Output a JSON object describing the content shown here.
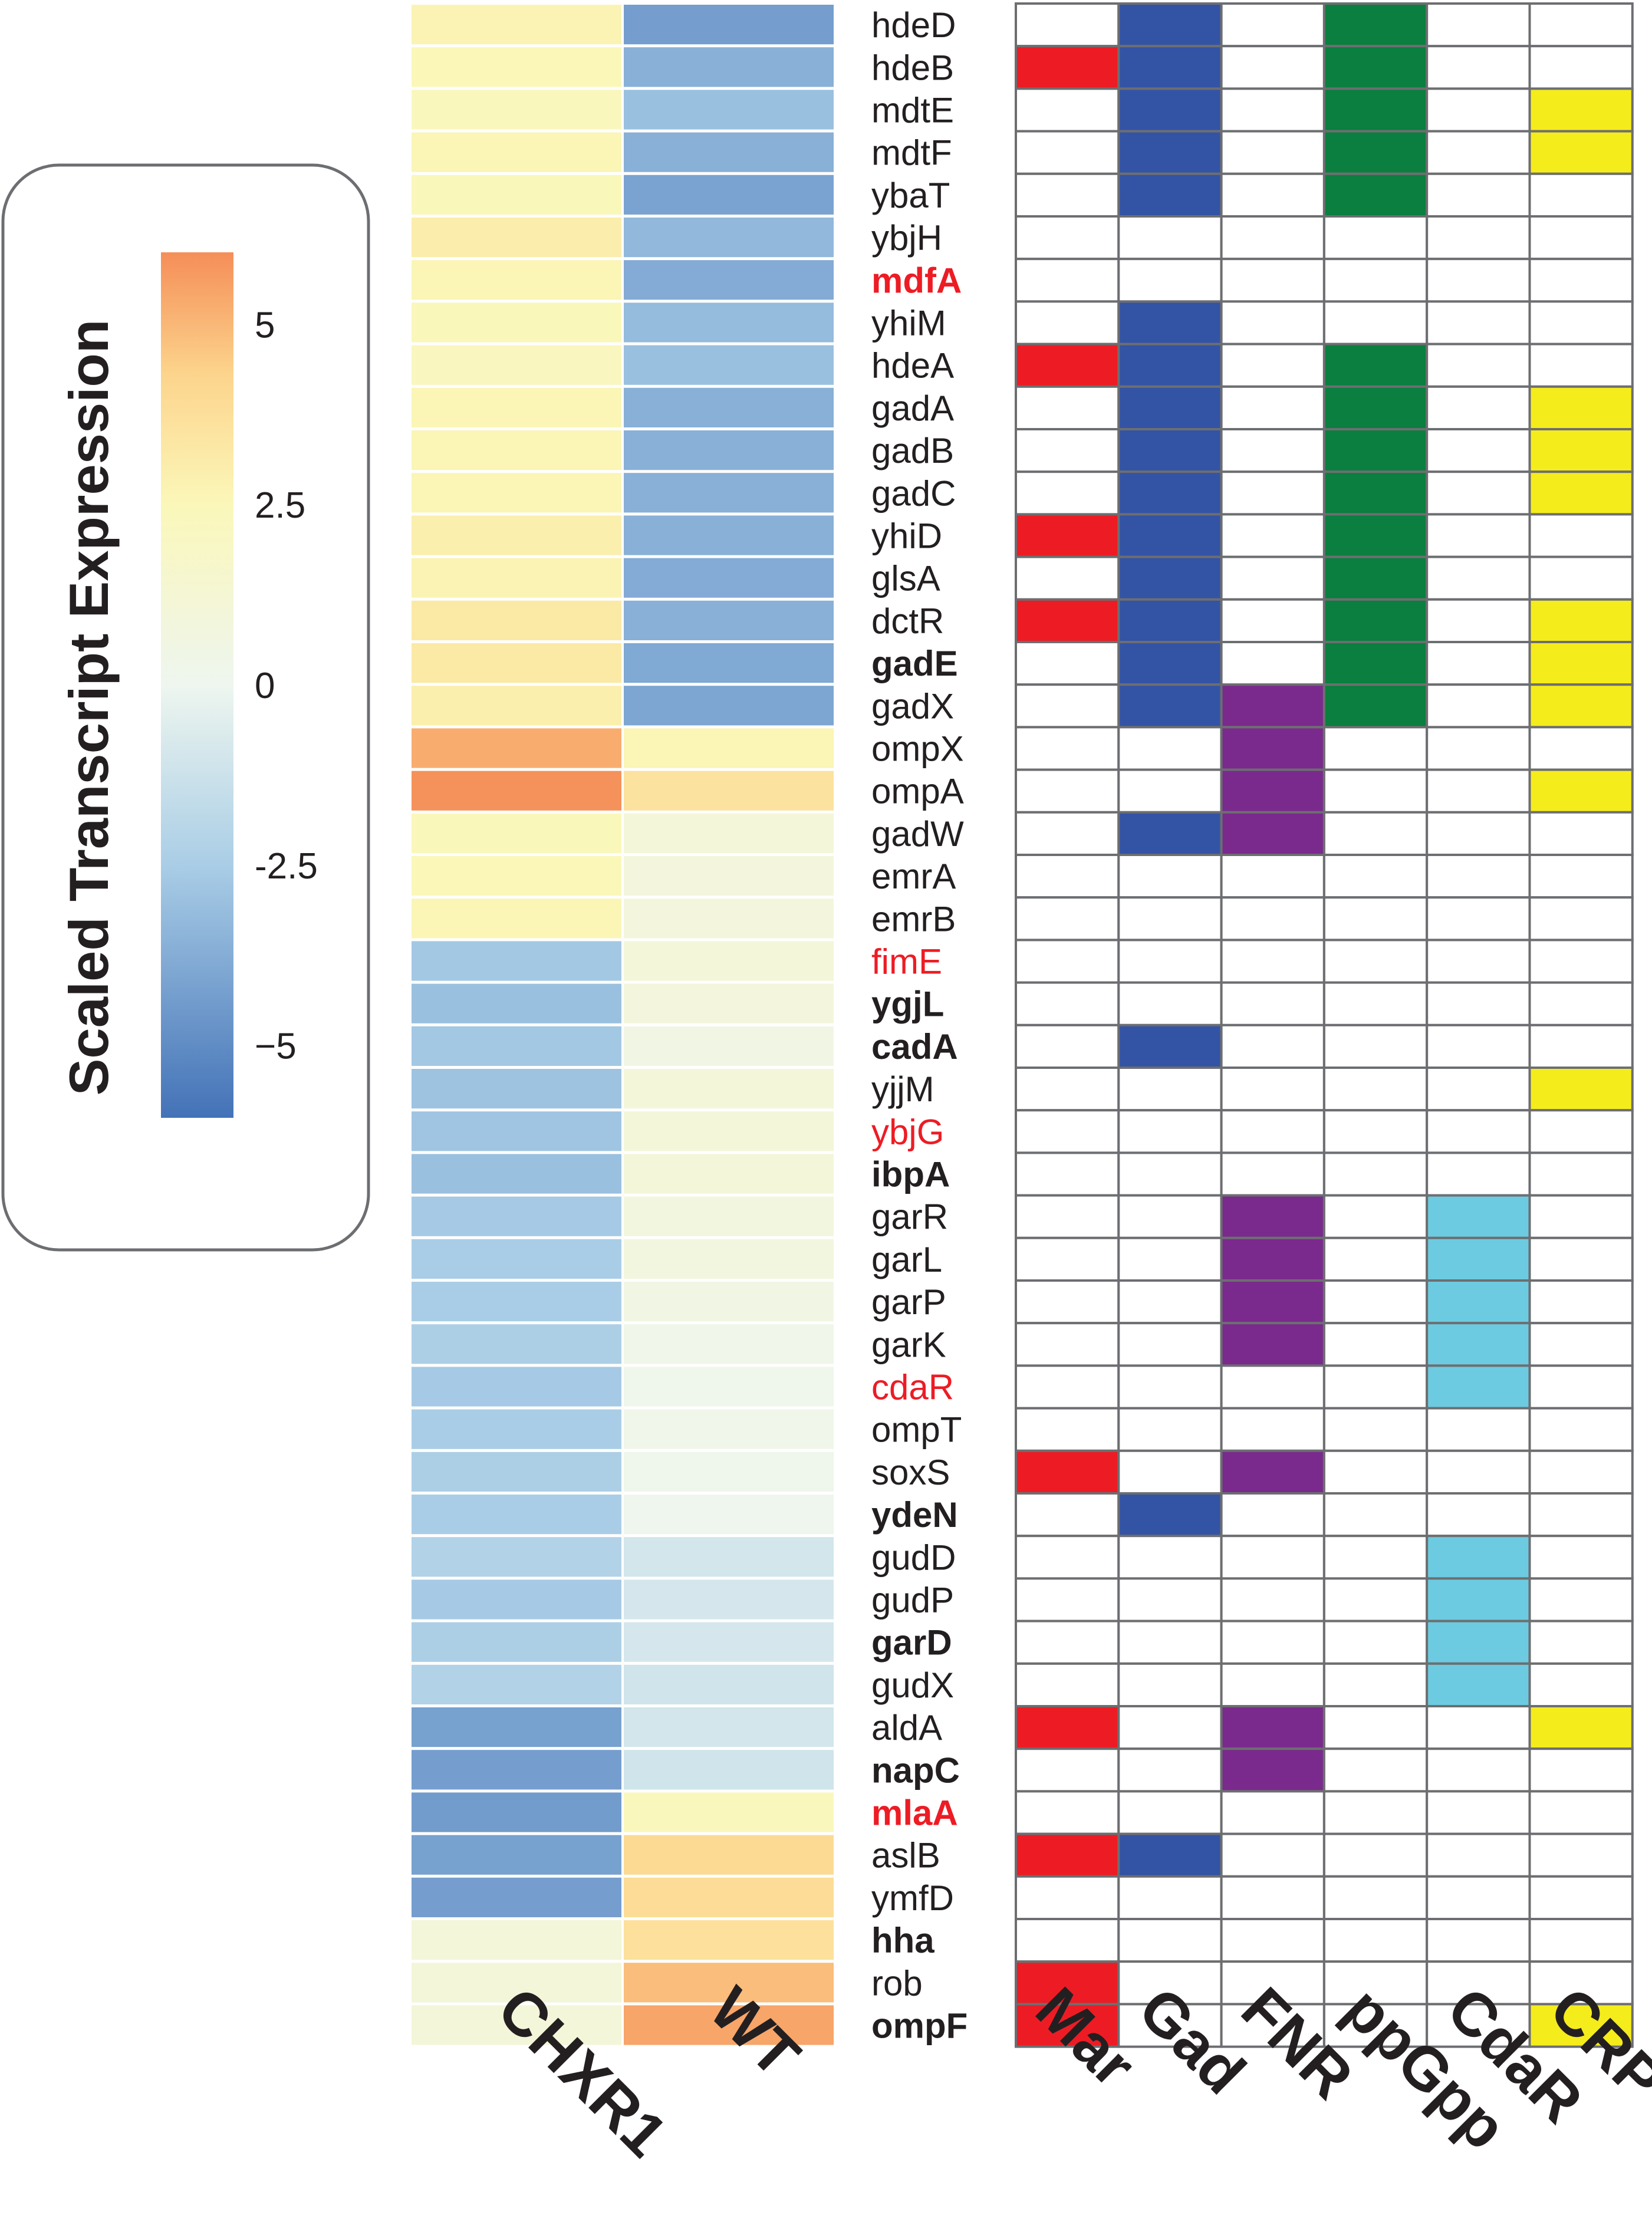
{
  "chart_data": {
    "type": "heatmap",
    "legend": {
      "title": "Scaled Transcript Expression",
      "scale_min": -6,
      "scale_max": 6,
      "ticks": [
        {
          "value": 5,
          "label": "5"
        },
        {
          "value": 2.5,
          "label": "2.5"
        },
        {
          "value": 0,
          "label": "0"
        },
        {
          "value": -2.5,
          "label": "-2.5"
        },
        {
          "value": -5,
          "label": "−5"
        }
      ],
      "colors": {
        "low": "#4372b7",
        "mid": "#eef6ef",
        "mid_high": "#fbf7b9",
        "high": "#f58e58"
      }
    },
    "columns": [
      "CHXR1",
      "WT"
    ],
    "regulators": [
      "Mar",
      "Gad",
      "FNR",
      "ppGpp",
      "CdaR",
      "CRP"
    ],
    "regulator_colors": {
      "Mar": "#ed1c24",
      "Gad": "#3353a5",
      "FNR": "#7a2a8c",
      "ppGpp": "#0a7f3f",
      "CdaR": "#6ccbe0",
      "CRP": "#f5ec1c"
    },
    "text_colors": {
      "normal": "#231f20",
      "highlight": "#ed1c24"
    },
    "genes": [
      {
        "name": "hdeD",
        "style": "normal",
        "chxr1": 2.7,
        "wt": -4.3,
        "regs": [
          "Gad",
          "ppGpp"
        ]
      },
      {
        "name": "hdeB",
        "style": "normal",
        "chxr1": 2.5,
        "wt": -3.6,
        "regs": [
          "Mar",
          "Gad",
          "ppGpp"
        ]
      },
      {
        "name": "mdtE",
        "style": "normal",
        "chxr1": 2.3,
        "wt": -3.0,
        "regs": [
          "Gad",
          "ppGpp",
          "CRP"
        ]
      },
      {
        "name": "mdtF",
        "style": "normal",
        "chxr1": 2.6,
        "wt": -3.6,
        "regs": [
          "Gad",
          "ppGpp",
          "CRP"
        ]
      },
      {
        "name": "ybaT",
        "style": "normal",
        "chxr1": 2.4,
        "wt": -4.1,
        "regs": [
          "Gad",
          "ppGpp"
        ]
      },
      {
        "name": "ybjH",
        "style": "normal",
        "chxr1": 3.0,
        "wt": -3.3,
        "regs": []
      },
      {
        "name": "mdfA",
        "style": "bold-red",
        "chxr1": 2.6,
        "wt": -3.8,
        "regs": []
      },
      {
        "name": "yhiM",
        "style": "normal",
        "chxr1": 2.4,
        "wt": -3.2,
        "regs": [
          "Gad"
        ]
      },
      {
        "name": "hdeA",
        "style": "normal",
        "chxr1": 2.2,
        "wt": -3.0,
        "regs": [
          "Mar",
          "Gad",
          "ppGpp"
        ]
      },
      {
        "name": "gadA",
        "style": "normal",
        "chxr1": 2.6,
        "wt": -3.6,
        "regs": [
          "Gad",
          "ppGpp",
          "CRP"
        ]
      },
      {
        "name": "gadB",
        "style": "normal",
        "chxr1": 2.6,
        "wt": -3.6,
        "regs": [
          "Gad",
          "ppGpp",
          "CRP"
        ]
      },
      {
        "name": "gadC",
        "style": "normal",
        "chxr1": 2.6,
        "wt": -3.6,
        "regs": [
          "Gad",
          "ppGpp",
          "CRP"
        ]
      },
      {
        "name": "yhiD",
        "style": "normal",
        "chxr1": 2.9,
        "wt": -3.6,
        "regs": [
          "Mar",
          "Gad",
          "ppGpp"
        ]
      },
      {
        "name": "glsA",
        "style": "normal",
        "chxr1": 2.7,
        "wt": -3.8,
        "regs": [
          "Gad",
          "ppGpp"
        ]
      },
      {
        "name": "dctR",
        "style": "normal",
        "chxr1": 3.2,
        "wt": -3.6,
        "regs": [
          "Mar",
          "Gad",
          "ppGpp",
          "CRP"
        ]
      },
      {
        "name": "gadE",
        "style": "bold",
        "chxr1": 3.2,
        "wt": -3.9,
        "regs": [
          "Gad",
          "ppGpp",
          "CRP"
        ]
      },
      {
        "name": "gadX",
        "style": "normal",
        "chxr1": 2.9,
        "wt": -4.0,
        "regs": [
          "Gad",
          "FNR",
          "ppGpp",
          "CRP"
        ]
      },
      {
        "name": "ompX",
        "style": "normal",
        "chxr1": 5.2,
        "wt": 2.6,
        "regs": [
          "FNR"
        ]
      },
      {
        "name": "ompA",
        "style": "normal",
        "chxr1": 5.9,
        "wt": 3.5,
        "regs": [
          "FNR",
          "CRP"
        ]
      },
      {
        "name": "gadW",
        "style": "normal",
        "chxr1": 2.4,
        "wt": 1.0,
        "regs": [
          "Gad",
          "FNR"
        ]
      },
      {
        "name": "emrA",
        "style": "normal",
        "chxr1": 2.5,
        "wt": 0.9,
        "regs": []
      },
      {
        "name": "emrB",
        "style": "normal",
        "chxr1": 2.6,
        "wt": 0.9,
        "regs": []
      },
      {
        "name": "fimE",
        "style": "red",
        "chxr1": -2.7,
        "wt": 1.0,
        "regs": []
      },
      {
        "name": "ygjL",
        "style": "bold",
        "chxr1": -3.0,
        "wt": 0.9,
        "regs": []
      },
      {
        "name": "cadA",
        "style": "bold",
        "chxr1": -2.7,
        "wt": 0.5,
        "regs": [
          "Gad"
        ]
      },
      {
        "name": "yjjM",
        "style": "normal",
        "chxr1": -2.9,
        "wt": 1.0,
        "regs": [
          "CRP"
        ]
      },
      {
        "name": "ybjG",
        "style": "red",
        "chxr1": -2.8,
        "wt": 1.0,
        "regs": []
      },
      {
        "name": "ibpA",
        "style": "bold",
        "chxr1": -3.0,
        "wt": 1.0,
        "regs": []
      },
      {
        "name": "garR",
        "style": "normal",
        "chxr1": -2.6,
        "wt": 0.8,
        "regs": [
          "FNR",
          "CdaR"
        ]
      },
      {
        "name": "garL",
        "style": "normal",
        "chxr1": -2.5,
        "wt": 0.8,
        "regs": [
          "FNR",
          "CdaR"
        ]
      },
      {
        "name": "garP",
        "style": "normal",
        "chxr1": -2.5,
        "wt": 0.5,
        "regs": [
          "FNR",
          "CdaR"
        ]
      },
      {
        "name": "garK",
        "style": "normal",
        "chxr1": -2.4,
        "wt": 0.3,
        "regs": [
          "FNR",
          "CdaR"
        ]
      },
      {
        "name": "cdaR",
        "style": "red",
        "chxr1": -2.6,
        "wt": 0.2,
        "regs": [
          "CdaR"
        ]
      },
      {
        "name": "ompT",
        "style": "normal",
        "chxr1": -2.5,
        "wt": 0.3,
        "regs": []
      },
      {
        "name": "soxS",
        "style": "normal",
        "chxr1": -2.4,
        "wt": 0.2,
        "regs": [
          "Mar",
          "FNR"
        ]
      },
      {
        "name": "ydeN",
        "style": "bold",
        "chxr1": -2.5,
        "wt": 0.1,
        "regs": [
          "Gad"
        ]
      },
      {
        "name": "gudD",
        "style": "normal",
        "chxr1": -2.2,
        "wt": -1.0,
        "regs": [
          "CdaR"
        ]
      },
      {
        "name": "gudP",
        "style": "normal",
        "chxr1": -2.6,
        "wt": -0.9,
        "regs": [
          "CdaR"
        ]
      },
      {
        "name": "garD",
        "style": "bold",
        "chxr1": -2.4,
        "wt": -0.9,
        "regs": [
          "CdaR"
        ]
      },
      {
        "name": "gudX",
        "style": "normal",
        "chxr1": -2.2,
        "wt": -1.1,
        "regs": [
          "CdaR"
        ]
      },
      {
        "name": "aldA",
        "style": "normal",
        "chxr1": -4.2,
        "wt": -1.0,
        "regs": [
          "Mar",
          "FNR",
          "CRP"
        ]
      },
      {
        "name": "napC",
        "style": "bold",
        "chxr1": -4.3,
        "wt": -1.1,
        "regs": [
          "FNR"
        ]
      },
      {
        "name": "mlaA",
        "style": "bold-red",
        "chxr1": -4.4,
        "wt": 2.3,
        "regs": []
      },
      {
        "name": "aslB",
        "style": "normal",
        "chxr1": -4.2,
        "wt": 3.9,
        "regs": [
          "Mar",
          "Gad"
        ]
      },
      {
        "name": "ymfD",
        "style": "normal",
        "chxr1": -4.3,
        "wt": 3.8,
        "regs": []
      },
      {
        "name": "hha",
        "style": "bold",
        "chxr1": 1.0,
        "wt": 3.6,
        "regs": []
      },
      {
        "name": "rob",
        "style": "normal",
        "chxr1": 1.0,
        "wt": 4.8,
        "regs": [
          "Mar"
        ]
      },
      {
        "name": "ompF",
        "style": "bold",
        "chxr1": 1.0,
        "wt": 5.4,
        "regs": [
          "Mar",
          "CRP"
        ]
      }
    ]
  }
}
